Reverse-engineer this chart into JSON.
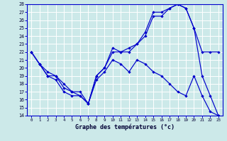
{
  "xlabel": "Graphe des températures (°c)",
  "xlim": [
    -0.5,
    23.5
  ],
  "ylim": [
    14,
    28
  ],
  "xticks": [
    0,
    1,
    2,
    3,
    4,
    5,
    6,
    7,
    8,
    9,
    10,
    11,
    12,
    13,
    14,
    15,
    16,
    17,
    18,
    19,
    20,
    21,
    22,
    23
  ],
  "yticks": [
    14,
    15,
    16,
    17,
    18,
    19,
    20,
    21,
    22,
    23,
    24,
    25,
    26,
    27,
    28
  ],
  "background_color": "#cce9e9",
  "grid_color": "#ffffff",
  "line_color": "#0000cc",
  "line1_x": [
    0,
    1,
    2,
    3,
    4,
    5,
    6,
    7,
    8,
    9,
    10,
    11,
    12,
    13,
    14,
    15,
    16,
    17,
    18,
    19,
    20,
    21,
    22,
    23
  ],
  "line1_y": [
    22,
    20.5,
    19,
    19,
    18,
    17,
    17,
    15.5,
    19,
    20,
    22.5,
    22,
    22.5,
    23,
    24.5,
    27,
    27,
    27.5,
    28,
    27.5,
    25,
    19,
    16.5,
    14
  ],
  "line2_x": [
    0,
    1,
    2,
    3,
    4,
    5,
    6,
    7,
    8,
    9,
    10,
    11,
    12,
    13,
    14,
    15,
    16,
    17,
    18,
    19,
    20,
    21,
    22,
    23
  ],
  "line2_y": [
    22,
    20.5,
    19.5,
    19,
    17.5,
    17,
    16.5,
    15.5,
    19,
    20,
    22,
    22,
    22,
    23,
    24,
    26.5,
    26.5,
    27.5,
    28,
    27.5,
    25,
    22,
    22,
    22
  ],
  "line3_x": [
    0,
    1,
    2,
    3,
    4,
    5,
    6,
    7,
    8,
    9,
    10,
    11,
    12,
    13,
    14,
    15,
    16,
    17,
    18,
    19,
    20,
    21,
    22,
    23
  ],
  "line3_y": [
    22,
    20.5,
    19,
    18.5,
    17,
    16.5,
    16.5,
    15.5,
    18.5,
    19.5,
    21,
    20.5,
    19.5,
    21,
    20.5,
    19.5,
    19,
    18,
    17,
    16.5,
    19,
    16.5,
    14.5,
    14
  ]
}
